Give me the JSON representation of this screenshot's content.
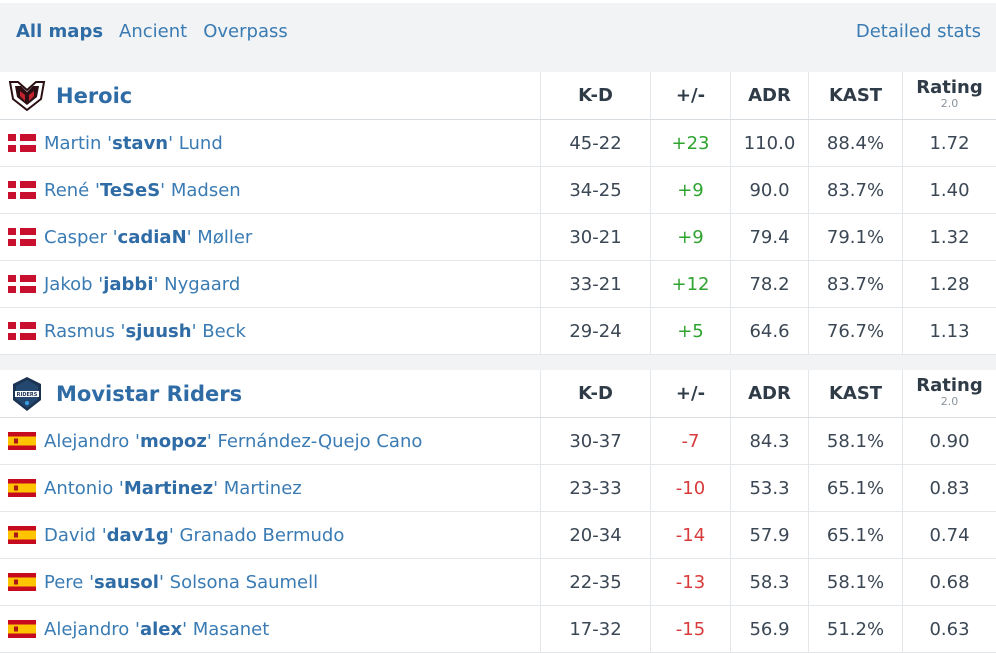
{
  "nav": {
    "tabs": [
      "All maps",
      "Ancient",
      "Overpass"
    ],
    "detailed_stats": "Detailed stats"
  },
  "columns": {
    "kd": "K-D",
    "pm": "+/-",
    "adr": "ADR",
    "kast": "KAST",
    "rating": "Rating",
    "rating_sub": "2.0"
  },
  "teams": [
    {
      "name": "Heroic",
      "players": [
        {
          "first": "Martin '",
          "nick": "stavn",
          "last": "' Lund",
          "kd": "45-22",
          "pm": "+23",
          "adr": "110.0",
          "kast": "88.4%",
          "rating": "1.72",
          "flag": "denmark"
        },
        {
          "first": "René '",
          "nick": "TeSeS",
          "last": "' Madsen",
          "kd": "34-25",
          "pm": "+9",
          "adr": "90.0",
          "kast": "83.7%",
          "rating": "1.40",
          "flag": "denmark"
        },
        {
          "first": "Casper '",
          "nick": "cadiaN",
          "last": "' Møller",
          "kd": "30-21",
          "pm": "+9",
          "adr": "79.4",
          "kast": "79.1%",
          "rating": "1.32",
          "flag": "denmark"
        },
        {
          "first": "Jakob '",
          "nick": "jabbi",
          "last": "' Nygaard",
          "kd": "33-21",
          "pm": "+12",
          "adr": "78.2",
          "kast": "83.7%",
          "rating": "1.28",
          "flag": "denmark"
        },
        {
          "first": "Rasmus '",
          "nick": "sjuush",
          "last": "' Beck",
          "kd": "29-24",
          "pm": "+5",
          "adr": "64.6",
          "kast": "76.7%",
          "rating": "1.13",
          "flag": "denmark"
        }
      ]
    },
    {
      "name": "Movistar Riders",
      "players": [
        {
          "first": "Alejandro '",
          "nick": "mopoz",
          "last": "' Fernández-Quejo Cano",
          "kd": "30-37",
          "pm": "-7",
          "adr": "84.3",
          "kast": "58.1%",
          "rating": "0.90",
          "flag": "spain"
        },
        {
          "first": "Antonio '",
          "nick": "Martinez",
          "last": "' Martinez",
          "kd": "23-33",
          "pm": "-10",
          "adr": "53.3",
          "kast": "65.1%",
          "rating": "0.83",
          "flag": "spain"
        },
        {
          "first": "David '",
          "nick": "dav1g",
          "last": "' Granado Bermudo",
          "kd": "20-34",
          "pm": "-14",
          "adr": "57.9",
          "kast": "65.1%",
          "rating": "0.74",
          "flag": "spain"
        },
        {
          "first": "Pere '",
          "nick": "sausol",
          "last": "' Solsona Saumell",
          "kd": "22-35",
          "pm": "-13",
          "adr": "58.3",
          "kast": "58.1%",
          "rating": "0.68",
          "flag": "spain"
        },
        {
          "first": "Alejandro '",
          "nick": "alex",
          "last": "' Masanet",
          "kd": "17-32",
          "pm": "-15",
          "adr": "56.9",
          "kast": "51.2%",
          "rating": "0.63",
          "flag": "spain"
        }
      ]
    }
  ],
  "colors": {
    "positive": "#2fa32f",
    "negative": "#d83b3b",
    "link": "#2f6ca6"
  }
}
